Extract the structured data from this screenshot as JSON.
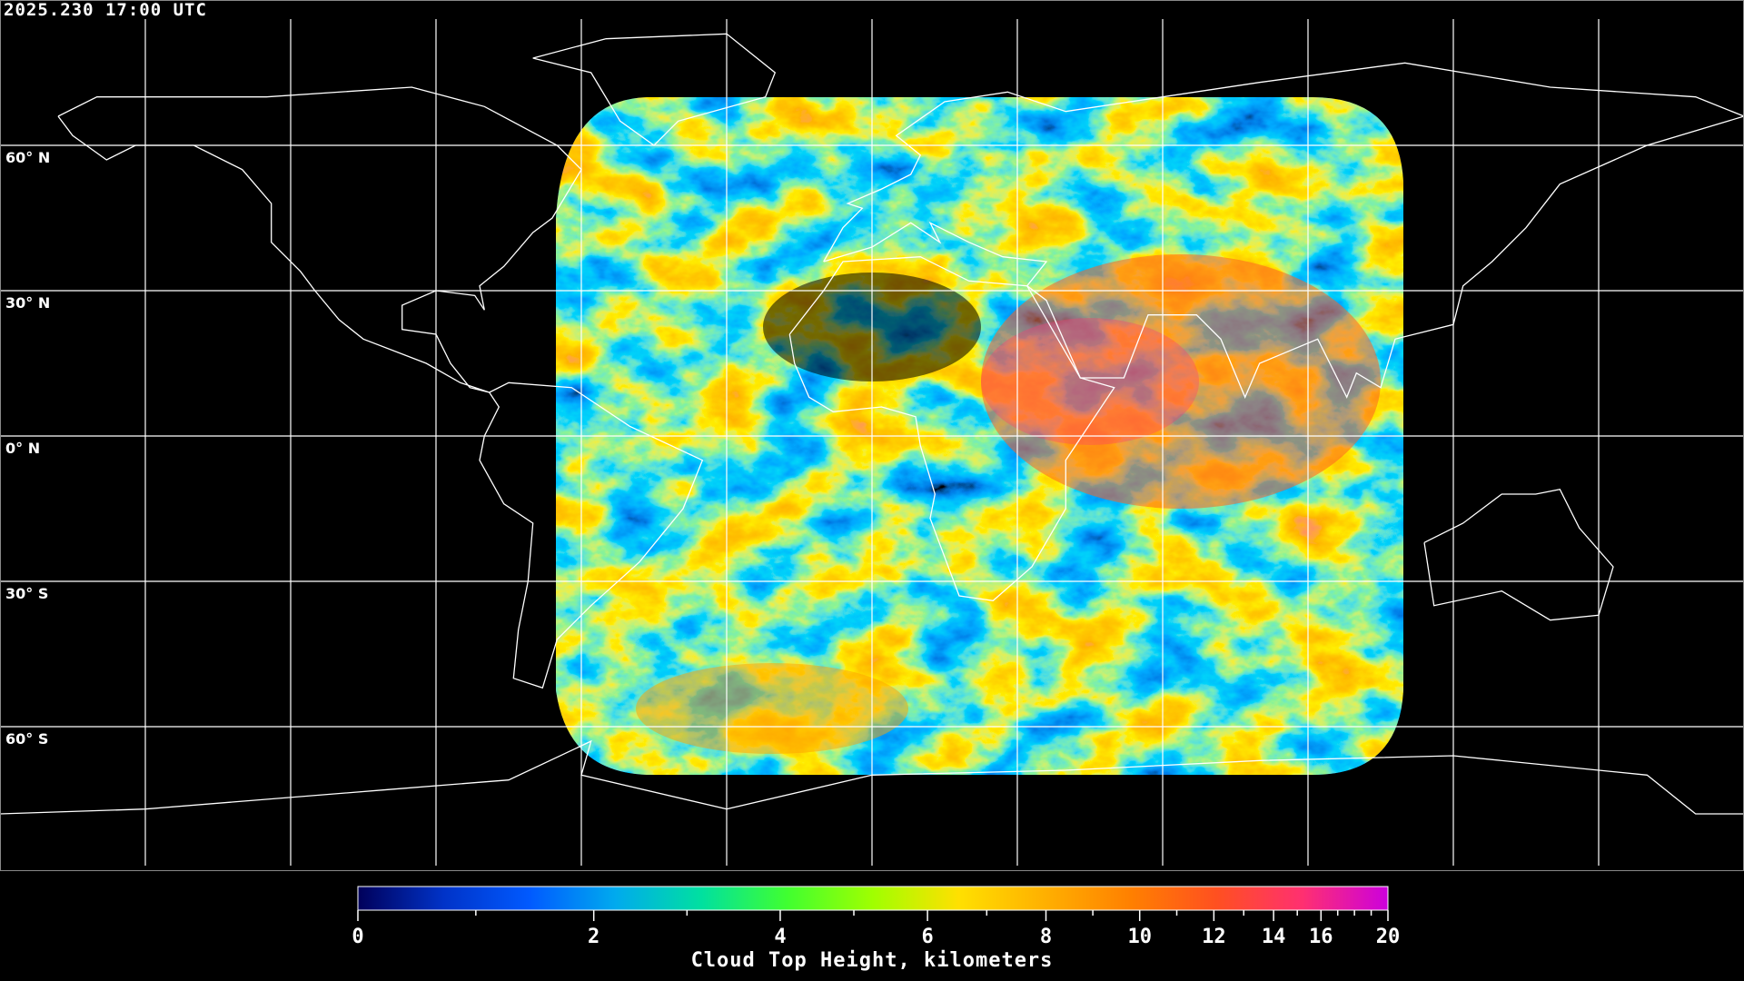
{
  "header": {
    "timestamp": "2025.230 17:00 UTC"
  },
  "map": {
    "projection": "equirectangular",
    "lat_labels": [
      "60° N",
      "30° N",
      "0° N",
      "30° S",
      "60° S"
    ],
    "lat_values": [
      60,
      30,
      0,
      -30,
      -60
    ],
    "lon_grid": [
      -150,
      -120,
      -90,
      -60,
      -30,
      0,
      30,
      60,
      90,
      120,
      150
    ],
    "grid_color": "#ffffff",
    "coastline_color": "#ffffff",
    "background": "#000000"
  },
  "colorbar": {
    "title": "Cloud Top Height, kilometers",
    "min": 0,
    "max": 20,
    "major_ticks": [
      "0",
      "2",
      "4",
      "6",
      "8",
      "10",
      "12",
      "14",
      "16",
      "20"
    ],
    "minor_ticks": [
      1,
      3,
      5,
      7,
      9,
      11,
      13,
      15,
      17,
      18,
      19
    ],
    "colors": [
      "#00005a",
      "#0033c8",
      "#005aff",
      "#00aaee",
      "#00e0a0",
      "#40ff30",
      "#a0ff00",
      "#ffe000",
      "#ffb000",
      "#ff8000",
      "#ff5020",
      "#ff3070",
      "#cc00dd"
    ]
  }
}
